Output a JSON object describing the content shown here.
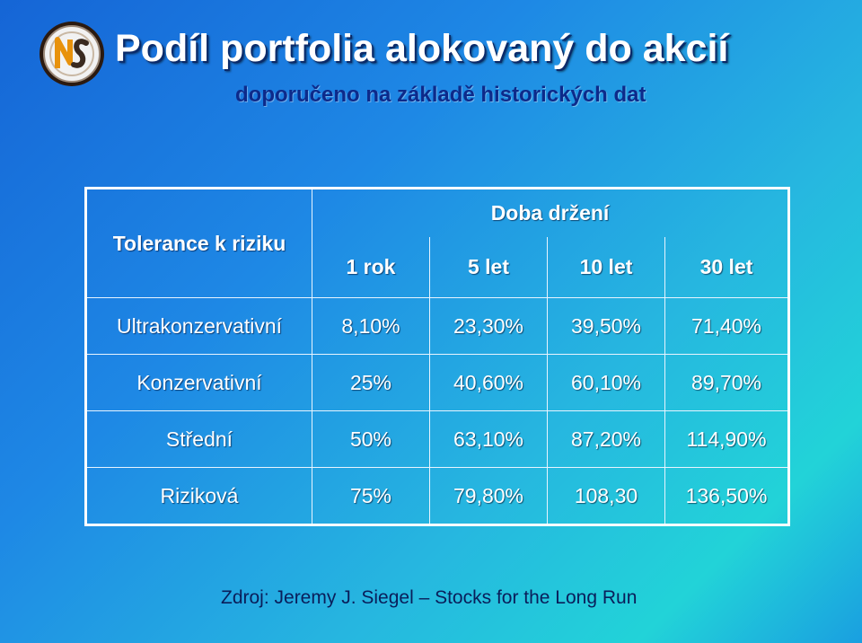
{
  "header": {
    "title": "Podíl portfolia alokovaný do akcií",
    "subtitle": "doporučeno na základě historických dat"
  },
  "table": {
    "row_header_label": "Tolerance k riziku",
    "group_header": "Doba držení",
    "columns": [
      "1 rok",
      "5 let",
      "10 let",
      "30 let"
    ],
    "rows": [
      {
        "label": "Ultrakonzervativní",
        "values": [
          "8,10%",
          "23,30%",
          "39,50%",
          "71,40%"
        ]
      },
      {
        "label": "Konzervativní",
        "values": [
          "25%",
          "40,60%",
          "60,10%",
          "89,70%"
        ]
      },
      {
        "label": "Střední",
        "values": [
          "50%",
          "63,10%",
          "87,20%",
          "114,90%"
        ]
      },
      {
        "label": "Riziková",
        "values": [
          "75%",
          "79,80%",
          "108,30",
          "136,50%"
        ]
      }
    ]
  },
  "footer": {
    "source": "Zdroj: Jeremy J. Siegel – Stocks for the Long Run"
  },
  "icons": {
    "logo": "ns-monogram-logo"
  }
}
